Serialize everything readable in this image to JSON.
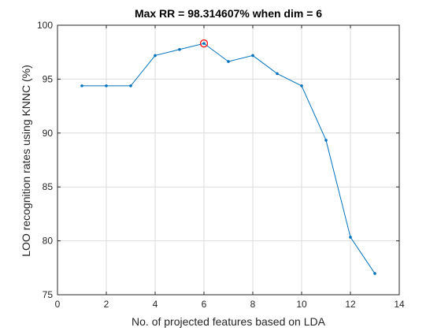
{
  "chart_data": {
    "type": "line",
    "title": "Max RR = 98.314607% when dim = 6",
    "xlabel": "No. of projected features based on LDA",
    "ylabel": "LOO recognition rates using KNNC (%)",
    "xlim": [
      0,
      14
    ],
    "ylim": [
      75,
      100
    ],
    "xticks": [
      0,
      2,
      4,
      6,
      8,
      10,
      12,
      14
    ],
    "yticks": [
      75,
      80,
      85,
      90,
      95,
      100
    ],
    "xtick_labels": [
      "0",
      "2",
      "4",
      "6",
      "8",
      "10",
      "12",
      "14"
    ],
    "ytick_labels": [
      "75",
      "80",
      "85",
      "90",
      "95",
      "100"
    ],
    "grid": true,
    "series": [
      {
        "x": [
          1,
          2,
          3,
          4,
          5,
          6,
          7,
          8,
          9,
          10,
          11,
          12,
          13
        ],
        "values": [
          94.38,
          94.38,
          94.38,
          97.19,
          97.75,
          98.31,
          96.63,
          97.19,
          95.51,
          94.38,
          89.33,
          80.34,
          76.97
        ]
      }
    ],
    "highlight": {
      "x": 6,
      "y": 98.31
    },
    "colors": {
      "line": "#0072bd",
      "highlight": "#ff0000",
      "grid": "#dcdcdc",
      "axis": "#262626"
    }
  }
}
